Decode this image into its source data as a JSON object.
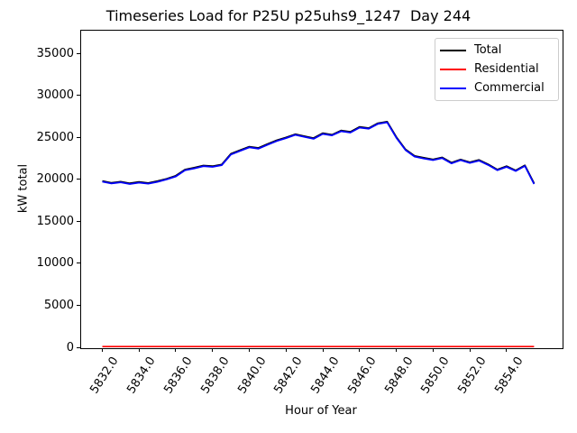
{
  "figure": {
    "title": "Timeseries Load for P25U p25uhs9_1247  Day 244",
    "xlabel": "Hour of Year",
    "ylabel": "kW total"
  },
  "legend": {
    "position": "upper right",
    "entries": [
      {
        "label": "Total",
        "color": "#000000"
      },
      {
        "label": "Residential",
        "color": "#ff0000"
      },
      {
        "label": "Commercial",
        "color": "#0000ff"
      }
    ]
  },
  "chart_data": {
    "type": "line",
    "title": "Timeseries Load for P25U p25uhs9_1247  Day 244",
    "xlabel": "Hour of Year",
    "ylabel": "kW total",
    "grid": false,
    "legend_position": "upper right",
    "xlim": [
      5830.8,
      5857.0
    ],
    "ylim": [
      0,
      37800
    ],
    "xticks": [
      5832,
      5834,
      5836,
      5838,
      5840,
      5842,
      5844,
      5846,
      5848,
      5850,
      5852,
      5854
    ],
    "xtick_labels": [
      "5832.0",
      "5834.0",
      "5836.0",
      "5838.0",
      "5840.0",
      "5842.0",
      "5844.0",
      "5846.0",
      "5848.0",
      "5850.0",
      "5852.0",
      "5854.0"
    ],
    "yticks": [
      0,
      5000,
      10000,
      15000,
      20000,
      25000,
      30000,
      35000
    ],
    "ytick_labels": [
      "0",
      "5000",
      "10000",
      "15000",
      "20000",
      "25000",
      "30000",
      "35000"
    ],
    "x": [
      5832.0,
      5832.5,
      5833.0,
      5833.5,
      5834.0,
      5834.5,
      5835.0,
      5835.5,
      5836.0,
      5836.5,
      5837.0,
      5837.5,
      5838.0,
      5838.5,
      5839.0,
      5839.5,
      5840.0,
      5840.5,
      5841.0,
      5841.5,
      5842.0,
      5842.5,
      5843.0,
      5843.5,
      5844.0,
      5844.5,
      5845.0,
      5845.5,
      5846.0,
      5846.5,
      5847.0,
      5847.5,
      5848.0,
      5848.5,
      5849.0,
      5849.5,
      5850.0,
      5850.5,
      5851.0,
      5851.5,
      5852.0,
      5852.5,
      5853.0,
      5853.5,
      5854.0,
      5854.5,
      5855.0,
      5855.5
    ],
    "series": [
      {
        "name": "Total",
        "color": "#000000",
        "values": [
          19800,
          19580,
          19720,
          19520,
          19680,
          19560,
          19780,
          20060,
          20420,
          21160,
          21380,
          21640,
          21560,
          21760,
          23030,
          23460,
          23880,
          23730,
          24200,
          24640,
          24980,
          25370,
          25130,
          24900,
          25480,
          25300,
          25800,
          25640,
          26230,
          26100,
          26680,
          26860,
          25030,
          23560,
          22780,
          22560,
          22360,
          22600,
          21980,
          22360,
          22030,
          22300,
          21780,
          21160,
          21560,
          21060,
          21660,
          19520
        ]
      },
      {
        "name": "Residential",
        "color": "#ff0000",
        "values": [
          80,
          80,
          80,
          80,
          80,
          80,
          80,
          80,
          80,
          80,
          80,
          80,
          80,
          80,
          80,
          80,
          80,
          80,
          80,
          80,
          80,
          80,
          80,
          80,
          80,
          80,
          80,
          80,
          80,
          80,
          80,
          80,
          80,
          80,
          80,
          80,
          80,
          80,
          80,
          80,
          80,
          80,
          80,
          80,
          80,
          80,
          80,
          80
        ]
      },
      {
        "name": "Commercial",
        "color": "#0000ff",
        "values": [
          19720,
          19500,
          19640,
          19440,
          19600,
          19480,
          19700,
          19980,
          20340,
          21080,
          21300,
          21560,
          21480,
          21680,
          22950,
          23380,
          23800,
          23650,
          24120,
          24560,
          24900,
          25290,
          25050,
          24820,
          25400,
          25220,
          25720,
          25560,
          26150,
          26020,
          26600,
          26780,
          24950,
          23480,
          22700,
          22480,
          22280,
          22520,
          21900,
          22280,
          21950,
          22220,
          21700,
          21080,
          21480,
          20980,
          21580,
          19440
        ]
      }
    ]
  }
}
